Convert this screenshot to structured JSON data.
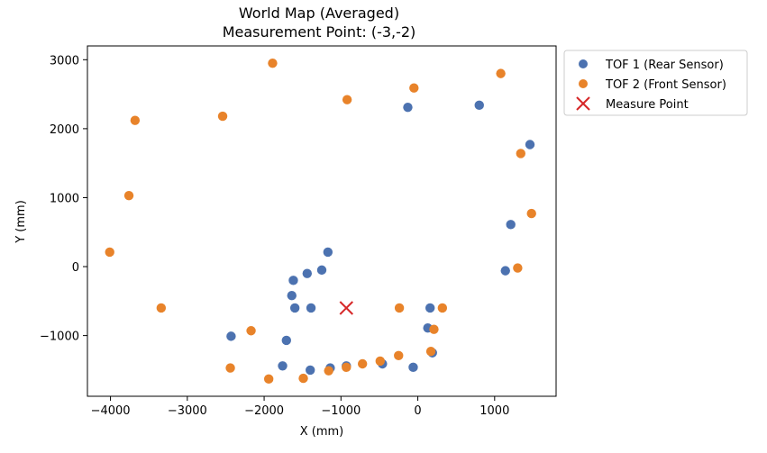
{
  "chart_data": {
    "type": "scatter",
    "title": "World Map (Averaged)",
    "subtitle": "Measurement Point: (-3,-2)",
    "xlabel": "X (mm)",
    "ylabel": "Y (mm)",
    "xlim": [
      -4300,
      1800
    ],
    "ylim": [
      -1880,
      3200
    ],
    "xticks": [
      -4000,
      -3000,
      -2000,
      -1000,
      0,
      1000
    ],
    "yticks": [
      -1000,
      0,
      1000,
      2000,
      3000
    ],
    "xtick_labels": [
      "−4000",
      "−3000",
      "−2000",
      "−1000",
      "0",
      "1000"
    ],
    "ytick_labels": [
      "−1000",
      "0",
      "1000",
      "2000",
      "3000"
    ],
    "grid": false,
    "legend_position": "outside-top-right",
    "series": [
      {
        "name": "TOF 1 (Rear Sensor)",
        "color": "#4C72B0",
        "marker": "circle",
        "points": [
          [
            -2430,
            -1010
          ],
          [
            -1760,
            -1440
          ],
          [
            -1710,
            -1070
          ],
          [
            -1640,
            -420
          ],
          [
            -1620,
            -200
          ],
          [
            -1600,
            -600
          ],
          [
            -1440,
            -100
          ],
          [
            -1400,
            -1500
          ],
          [
            -1390,
            -600
          ],
          [
            -1250,
            -50
          ],
          [
            -1170,
            210
          ],
          [
            -1140,
            -1470
          ],
          [
            -930,
            -1440
          ],
          [
            -460,
            -1410
          ],
          [
            -60,
            -1460
          ],
          [
            -130,
            2310
          ],
          [
            130,
            -890
          ],
          [
            160,
            -600
          ],
          [
            190,
            -1250
          ],
          [
            800,
            2340
          ],
          [
            1140,
            -60
          ],
          [
            1210,
            610
          ],
          [
            1460,
            1770
          ]
        ]
      },
      {
        "name": "TOF 2 (Front Sensor)",
        "color": "#E8832A",
        "marker": "circle",
        "points": [
          [
            -4010,
            210
          ],
          [
            -3760,
            1030
          ],
          [
            -3680,
            2120
          ],
          [
            -3340,
            -600
          ],
          [
            -2540,
            2180
          ],
          [
            -2440,
            -1470
          ],
          [
            -2170,
            -930
          ],
          [
            -1940,
            -1630
          ],
          [
            -1890,
            2950
          ],
          [
            -1490,
            -1620
          ],
          [
            -1160,
            -1510
          ],
          [
            -930,
            -1460
          ],
          [
            -920,
            2420
          ],
          [
            -720,
            -1410
          ],
          [
            -490,
            -1370
          ],
          [
            -240,
            -600
          ],
          [
            -250,
            -1290
          ],
          [
            -50,
            2590
          ],
          [
            170,
            -1230
          ],
          [
            210,
            -910
          ],
          [
            320,
            -600
          ],
          [
            1080,
            2800
          ],
          [
            1300,
            -20
          ],
          [
            1340,
            1640
          ],
          [
            1480,
            770
          ]
        ]
      },
      {
        "name": "Measure Point",
        "color": "#D62728",
        "marker": "x",
        "points": [
          [
            -930,
            -600
          ]
        ]
      }
    ]
  }
}
